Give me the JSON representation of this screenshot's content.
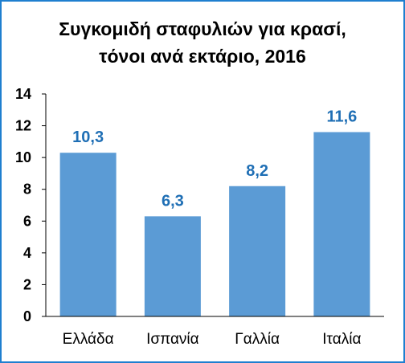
{
  "chart_data": {
    "type": "bar",
    "title_lines": [
      "Συγκομιδή σταφυλιών για κρασί,",
      "τόνοι ανά εκτάριο, 2016"
    ],
    "categories": [
      "Ελλάδα",
      "Ισπανία",
      "Γαλλία",
      "Ιταλία"
    ],
    "values": [
      10.3,
      6.3,
      8.2,
      11.6
    ],
    "data_labels": [
      "10,3",
      "6,3",
      "8,2",
      "11,6"
    ],
    "ylim": [
      0,
      14
    ],
    "yticks": [
      "0",
      "2",
      "4",
      "6",
      "8",
      "10",
      "12",
      "14"
    ],
    "grid": false,
    "legend": "none",
    "colors": {
      "bar": "#5b9bd5",
      "label": "#1f6fb5",
      "border": "#1f7fcf"
    }
  }
}
